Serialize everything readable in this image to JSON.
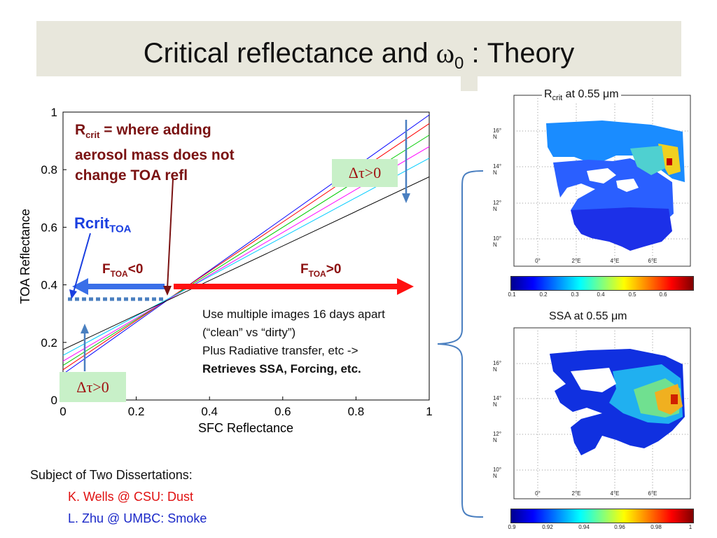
{
  "title": {
    "main": "Critical reflectance and ",
    "omega": "ω",
    "sub": "0",
    "rest": " : Theory"
  },
  "chart_data": [
    {
      "type": "line",
      "xlabel": "SFC Reflectance",
      "ylabel": "TOA Reflectance",
      "xlim": [
        0,
        1
      ],
      "ylim": [
        0,
        1
      ],
      "xticks": [
        "0",
        "0.2",
        "0.4",
        "0.6",
        "0.8",
        "1"
      ],
      "yticks": [
        "0",
        "0.2",
        "0.4",
        "0.6",
        "0.8",
        "1"
      ],
      "x": [
        0,
        1
      ],
      "series": [
        {
          "color": "#0000ff",
          "values": [
            0.09,
            0.99
          ]
        },
        {
          "color": "#ff0000",
          "values": [
            0.105,
            0.96
          ]
        },
        {
          "color": "#00cc00",
          "values": [
            0.12,
            0.92
          ]
        },
        {
          "color": "#ff00ff",
          "values": [
            0.135,
            0.88
          ]
        },
        {
          "color": "#00ccff",
          "values": [
            0.155,
            0.84
          ]
        },
        {
          "color": "#000000",
          "values": [
            0.175,
            0.775
          ]
        }
      ],
      "rcrit_level": 0.35,
      "rcrit_x": 0.28
    }
  ],
  "annotations": {
    "callout_line1": "R",
    "callout_sub": "crit",
    "callout_rest1": " = where adding",
    "callout_line2": "aerosol mass does not",
    "callout_line3": "change TOA refl",
    "delta_tau": "Δτ>0",
    "rcrit_label": "Rcrit",
    "rcrit_sub": "TOA",
    "f_neg_main": "F",
    "f_neg_sub": "TOA",
    "f_neg_rest": "<0",
    "f_pos_main": "F",
    "f_pos_sub": "TOA",
    "f_pos_rest": ">0"
  },
  "description": {
    "line1": "Use multiple images 16 days apart",
    "line2": "(“clean” vs “dirty”)",
    "line3": "Plus Radiative transfer, etc ->",
    "line4": "Retrieves SSA, Forcing, etc."
  },
  "subject": {
    "heading": "Subject of Two Dissertations:",
    "item1": "K. Wells @ CSU: Dust",
    "item2": "L. Zhu @ UMBC: Smoke"
  },
  "maps": [
    {
      "title_main": "R",
      "title_sub": "crit",
      "title_rest": " at 0.55 μm",
      "lat_labels": [
        "16° N",
        "14° N",
        "12° N",
        "10° N"
      ],
      "lon_labels": [
        "0°",
        "2°E",
        "4°E",
        "6°E"
      ],
      "colorbar_ticks": [
        "0.1",
        "0.2",
        "0.3",
        "0.4",
        "0.5",
        "0.6"
      ]
    },
    {
      "title_main": "SSA at 0.55 μm",
      "lat_labels": [
        "16° N",
        "14° N",
        "12° N",
        "10° N"
      ],
      "lon_labels": [
        "0°",
        "2°E",
        "4°E",
        "6°E"
      ],
      "colorbar_ticks": [
        "0.9",
        "0.92",
        "0.94",
        "0.96",
        "0.98",
        "1"
      ]
    }
  ],
  "colors": {
    "title_band": "#e8e7dc",
    "arrow_red": "#ff1010",
    "arrow_blue": "#3a6fe8",
    "steel_blue": "#4a7fc0",
    "callout_red": "#7a1212",
    "green_box": "#c8f0c8"
  }
}
